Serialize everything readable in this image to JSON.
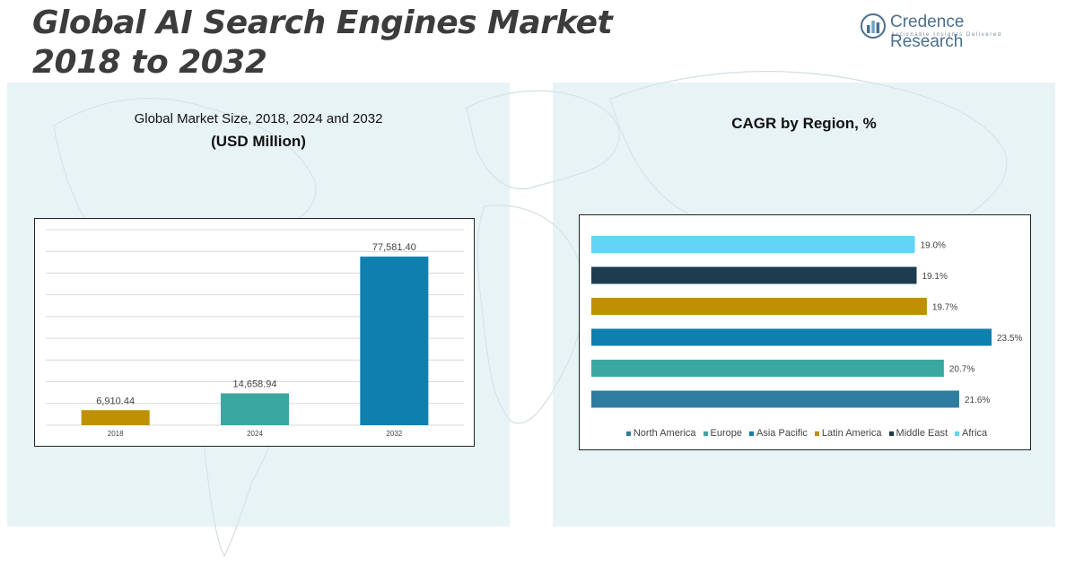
{
  "header": {
    "title_line1": "Global AI Search Engines Market",
    "title_line2": "2018 to 2032"
  },
  "brand": {
    "name": "Credence Research",
    "tagline": "Actionable Insights Delivered",
    "logo_icon": "bar-chart-logo-icon"
  },
  "colors": {
    "text_dark": "#3c3c3c",
    "panel_bg": "#d6e9ee",
    "gold": "#bf9000",
    "teal": "#3aa8a0",
    "blue": "#0f7fae",
    "north_america": "#2e7ca0",
    "middle_east": "#1c3d4f",
    "africa": "#62d4f5"
  },
  "chart_data": [
    {
      "type": "bar",
      "title": "Global Market Size, 2018, 2024 and 2032",
      "subtitle": "(USD Million)",
      "categories": [
        "2018",
        "2024",
        "2032"
      ],
      "values": [
        6910.44,
        14658.94,
        77581.4
      ],
      "labels": [
        "6,910.44",
        "14,658.94",
        "77,581.40"
      ],
      "bar_colors": [
        "#bf9000",
        "#3aa8a0",
        "#0f7fae"
      ],
      "ylim": [
        0,
        90000
      ],
      "grid": true,
      "xlabel": "",
      "ylabel": ""
    },
    {
      "type": "bar",
      "orientation": "horizontal",
      "title": "CAGR by Region, %",
      "categories": [
        "North America",
        "Europe",
        "Asia Pacific",
        "Latin America",
        "Middle East",
        "Africa"
      ],
      "values": [
        21.6,
        20.7,
        23.5,
        19.7,
        19.1,
        19.0
      ],
      "labels": [
        "21.6%",
        "20.7%",
        "23.5%",
        "19.7%",
        "19.1%",
        "19.0%"
      ],
      "bar_colors": [
        "#2e7ca0",
        "#3aa8a0",
        "#0f7fae",
        "#bf9000",
        "#1c3d4f",
        "#62d4f5"
      ],
      "xlim": [
        0,
        25
      ],
      "legend": "bottom"
    }
  ]
}
